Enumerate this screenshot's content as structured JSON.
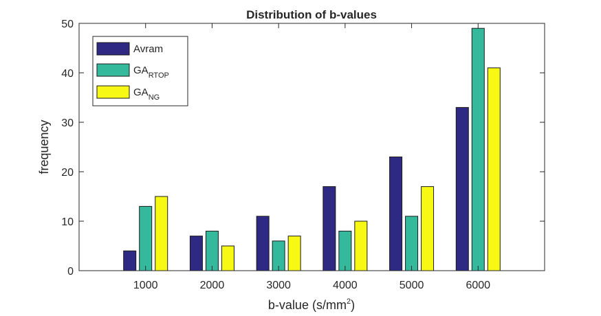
{
  "chart_data": {
    "type": "bar",
    "title": "Distribution of b-values",
    "xlabel_main": "b-value (s/mm",
    "xlabel_sup": "2",
    "xlabel_close": ")",
    "ylabel": "frequency",
    "categories": [
      "1000",
      "2000",
      "3000",
      "4000",
      "5000",
      "6000"
    ],
    "xlim": [
      0,
      7000
    ],
    "ylim": [
      0,
      50
    ],
    "yticks": [
      0,
      10,
      20,
      30,
      40,
      50
    ],
    "series": [
      {
        "name": "Avram",
        "name_base": "Avram",
        "name_sub": "",
        "color": "#2e2a83",
        "values": [
          4,
          7,
          11,
          17,
          23,
          33
        ]
      },
      {
        "name": "GA_RTOP",
        "name_base": "GA",
        "name_sub": "RTOP",
        "color": "#35b99d",
        "values": [
          13,
          8,
          6,
          8,
          11,
          49
        ]
      },
      {
        "name": "GA_NG",
        "name_base": "GA",
        "name_sub": "NG",
        "color": "#f7f813",
        "values": [
          15,
          5,
          7,
          10,
          17,
          41
        ]
      }
    ],
    "legend": "top-left",
    "grid": false
  }
}
